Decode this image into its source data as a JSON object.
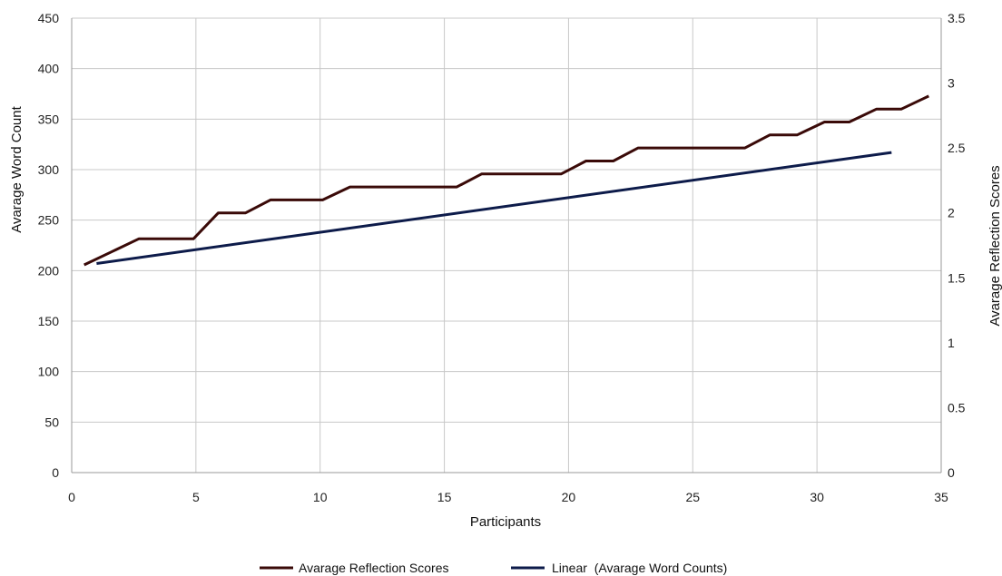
{
  "chart_data": {
    "type": "line",
    "grid": true,
    "legend_position": "bottom",
    "xlabel": "Participants",
    "ylabel_left": "Avarage Word Count",
    "ylabel_right": "Avarage Reflection Scores",
    "xlim": [
      0,
      35
    ],
    "ylim_left": [
      0,
      450
    ],
    "ylim_right": [
      0,
      3.5
    ],
    "x_ticks": [
      "0",
      "5",
      "10",
      "15",
      "20",
      "25",
      "30",
      "35"
    ],
    "y_left_ticks": [
      "0",
      "50",
      "100",
      "150",
      "200",
      "250",
      "300",
      "350",
      "400",
      "450"
    ],
    "y_right_ticks": [
      "0",
      "0.5",
      "1",
      "1.5",
      "2",
      "2.5",
      "3",
      "3.5"
    ],
    "series": [
      {
        "name": "Avarage Reflection Scores",
        "axis": "right",
        "color": "#3a0a08",
        "points": [
          [
            0.5,
            1.6
          ],
          [
            1.6,
            1.7
          ],
          [
            2.7,
            1.8
          ],
          [
            3.8,
            1.8
          ],
          [
            4.9,
            1.8
          ],
          [
            5.9,
            2.0
          ],
          [
            7.0,
            2.0
          ],
          [
            8.0,
            2.1
          ],
          [
            9.1,
            2.1
          ],
          [
            10.1,
            2.1
          ],
          [
            11.2,
            2.2
          ],
          [
            12.3,
            2.2
          ],
          [
            13.3,
            2.2
          ],
          [
            14.4,
            2.2
          ],
          [
            15.5,
            2.2
          ],
          [
            16.5,
            2.3
          ],
          [
            17.6,
            2.3
          ],
          [
            18.6,
            2.3
          ],
          [
            19.7,
            2.3
          ],
          [
            20.7,
            2.4
          ],
          [
            21.8,
            2.4
          ],
          [
            22.8,
            2.5
          ],
          [
            23.9,
            2.5
          ],
          [
            25.0,
            2.5
          ],
          [
            26.0,
            2.5
          ],
          [
            27.1,
            2.5
          ],
          [
            28.1,
            2.6
          ],
          [
            29.2,
            2.6
          ],
          [
            30.3,
            2.7
          ],
          [
            31.3,
            2.7
          ],
          [
            32.4,
            2.8
          ],
          [
            33.4,
            2.8
          ],
          [
            34.5,
            2.9
          ]
        ]
      },
      {
        "name": "Linear  (Avarage Word Counts)",
        "axis": "left",
        "color": "#0d1b4a",
        "points": [
          [
            1.0,
            207
          ],
          [
            33.0,
            317
          ]
        ]
      }
    ]
  }
}
